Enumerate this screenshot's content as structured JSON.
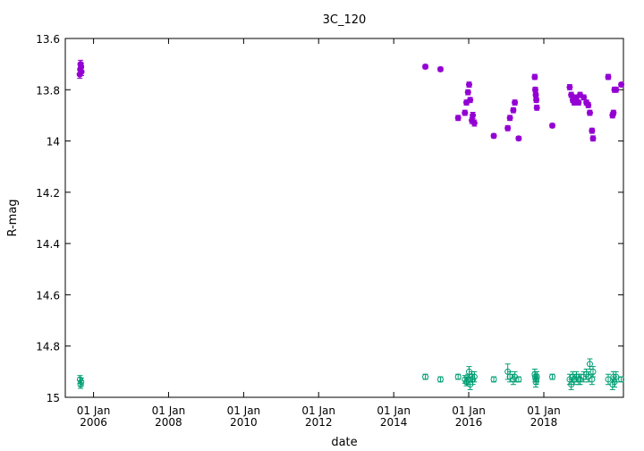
{
  "chart_data": {
    "type": "scatter",
    "title": "3C_120",
    "xlabel": "date",
    "ylabel": "R-mag",
    "ylim": [
      15.0,
      13.6
    ],
    "y_inverted": true,
    "xlim": [
      "2005-04-01",
      "2020-02-15"
    ],
    "x_ticks": [
      {
        "date": "2006-01-01",
        "line1": "01 Jan",
        "line2": "2006"
      },
      {
        "date": "2008-01-01",
        "line1": "01 Jan",
        "line2": "2008"
      },
      {
        "date": "2010-01-01",
        "line1": "01 Jan",
        "line2": "2010"
      },
      {
        "date": "2012-01-01",
        "line1": "01 Jan",
        "line2": "2012"
      },
      {
        "date": "2014-01-01",
        "line1": "01 Jan",
        "line2": "2014"
      },
      {
        "date": "2016-01-01",
        "line1": "01 Jan",
        "line2": "2016"
      },
      {
        "date": "2018-01-01",
        "line1": "01 Jan",
        "line2": "2018"
      }
    ],
    "y_ticks": [
      "13.6",
      "13.8",
      "14",
      "14.2",
      "14.4",
      "14.6",
      "14.8",
      "15"
    ],
    "y_tick_values": [
      13.6,
      13.8,
      14.0,
      14.2,
      14.4,
      14.6,
      14.8,
      15.0
    ],
    "grid": false,
    "series": [
      {
        "color": "#9400d3",
        "marker": "filled-circle",
        "points": [
          [
            "2005-08-20",
            13.74,
            0.015
          ],
          [
            "2005-08-25",
            13.72,
            0.015
          ],
          [
            "2005-08-28",
            13.7,
            0.015
          ],
          [
            "2005-09-02",
            13.71,
            0.015
          ],
          [
            "2005-09-05",
            13.73,
            0.015
          ],
          [
            "2014-11-05",
            13.71,
            0.008
          ],
          [
            "2015-04-01",
            13.72,
            0.008
          ],
          [
            "2015-09-20",
            13.91,
            0.01
          ],
          [
            "2015-11-25",
            13.89,
            0.01
          ],
          [
            "2015-12-10",
            13.85,
            0.01
          ],
          [
            "2015-12-25",
            13.81,
            0.01
          ],
          [
            "2016-01-05",
            13.78,
            0.01
          ],
          [
            "2016-01-15",
            13.84,
            0.01
          ],
          [
            "2016-02-01",
            13.92,
            0.012
          ],
          [
            "2016-02-10",
            13.9,
            0.012
          ],
          [
            "2016-02-25",
            13.93,
            0.012
          ],
          [
            "2016-09-01",
            13.98,
            0.008
          ],
          [
            "2017-01-15",
            13.95,
            0.01
          ],
          [
            "2017-02-05",
            13.91,
            0.01
          ],
          [
            "2017-03-10",
            13.88,
            0.01
          ],
          [
            "2017-03-25",
            13.85,
            0.01
          ],
          [
            "2017-05-01",
            13.99,
            0.008
          ],
          [
            "2017-10-05",
            13.75,
            0.01
          ],
          [
            "2017-10-10",
            13.8,
            0.01
          ],
          [
            "2017-10-15",
            13.82,
            0.01
          ],
          [
            "2017-10-20",
            13.84,
            0.01
          ],
          [
            "2017-10-25",
            13.87,
            0.01
          ],
          [
            "2018-03-25",
            13.94,
            0.008
          ],
          [
            "2018-09-10",
            13.79,
            0.01
          ],
          [
            "2018-09-25",
            13.82,
            0.01
          ],
          [
            "2018-10-10",
            13.84,
            0.01
          ],
          [
            "2018-10-25",
            13.85,
            0.01
          ],
          [
            "2018-11-15",
            13.83,
            0.01
          ],
          [
            "2018-12-05",
            13.85,
            0.01
          ],
          [
            "2018-12-20",
            13.82,
            0.01
          ],
          [
            "2019-01-25",
            13.83,
            0.01
          ],
          [
            "2019-02-20",
            13.85,
            0.01
          ],
          [
            "2019-03-10",
            13.86,
            0.01
          ],
          [
            "2019-03-25",
            13.89,
            0.01
          ],
          [
            "2019-04-15",
            13.96,
            0.01
          ],
          [
            "2019-04-25",
            13.99,
            0.01
          ],
          [
            "2019-09-20",
            13.75,
            0.01
          ],
          [
            "2019-11-01",
            13.9,
            0.01
          ],
          [
            "2019-11-10",
            13.89,
            0.01
          ],
          [
            "2019-11-20",
            13.8,
            0.01
          ],
          [
            "2019-12-05",
            13.8,
            0.01
          ],
          [
            "2020-01-25",
            13.78,
            0.008
          ]
        ]
      },
      {
        "color": "#009e73",
        "marker": "open-circle",
        "points": [
          [
            "2005-08-22",
            14.93,
            0.015
          ],
          [
            "2005-08-28",
            14.95,
            0.015
          ],
          [
            "2005-09-03",
            14.94,
            0.015
          ],
          [
            "2014-11-05",
            14.92,
            0.01
          ],
          [
            "2015-04-01",
            14.93,
            0.01
          ],
          [
            "2015-09-20",
            14.92,
            0.01
          ],
          [
            "2015-11-25",
            14.93,
            0.015
          ],
          [
            "2015-12-10",
            14.94,
            0.015
          ],
          [
            "2015-12-25",
            14.93,
            0.02
          ],
          [
            "2016-01-05",
            14.9,
            0.02
          ],
          [
            "2016-01-15",
            14.95,
            0.02
          ],
          [
            "2016-02-01",
            14.92,
            0.02
          ],
          [
            "2016-02-10",
            14.93,
            0.02
          ],
          [
            "2016-02-25",
            14.92,
            0.02
          ],
          [
            "2016-09-01",
            14.93,
            0.01
          ],
          [
            "2017-01-15",
            14.9,
            0.03
          ],
          [
            "2017-02-05",
            14.92,
            0.02
          ],
          [
            "2017-03-10",
            14.93,
            0.02
          ],
          [
            "2017-03-25",
            14.92,
            0.02
          ],
          [
            "2017-05-01",
            14.93,
            0.01
          ],
          [
            "2017-10-05",
            14.91,
            0.02
          ],
          [
            "2017-10-10",
            14.92,
            0.02
          ],
          [
            "2017-10-15",
            14.94,
            0.02
          ],
          [
            "2017-10-20",
            14.93,
            0.02
          ],
          [
            "2017-10-25",
            14.92,
            0.02
          ],
          [
            "2018-03-25",
            14.92,
            0.01
          ],
          [
            "2018-09-10",
            14.93,
            0.02
          ],
          [
            "2018-09-25",
            14.95,
            0.02
          ],
          [
            "2018-10-10",
            14.92,
            0.02
          ],
          [
            "2018-10-25",
            14.93,
            0.02
          ],
          [
            "2018-11-15",
            14.92,
            0.02
          ],
          [
            "2018-12-05",
            14.93,
            0.02
          ],
          [
            "2018-12-20",
            14.93,
            0.02
          ],
          [
            "2019-01-25",
            14.92,
            0.02
          ],
          [
            "2019-02-20",
            14.91,
            0.02
          ],
          [
            "2019-03-10",
            14.92,
            0.02
          ],
          [
            "2019-03-25",
            14.87,
            0.02
          ],
          [
            "2019-04-15",
            14.93,
            0.02
          ],
          [
            "2019-04-25",
            14.9,
            0.02
          ],
          [
            "2019-09-20",
            14.93,
            0.02
          ],
          [
            "2019-11-01",
            14.95,
            0.02
          ],
          [
            "2019-11-10",
            14.92,
            0.02
          ],
          [
            "2019-11-20",
            14.94,
            0.02
          ],
          [
            "2019-12-05",
            14.92,
            0.02
          ],
          [
            "2020-01-25",
            14.93,
            0.01
          ]
        ]
      }
    ]
  }
}
